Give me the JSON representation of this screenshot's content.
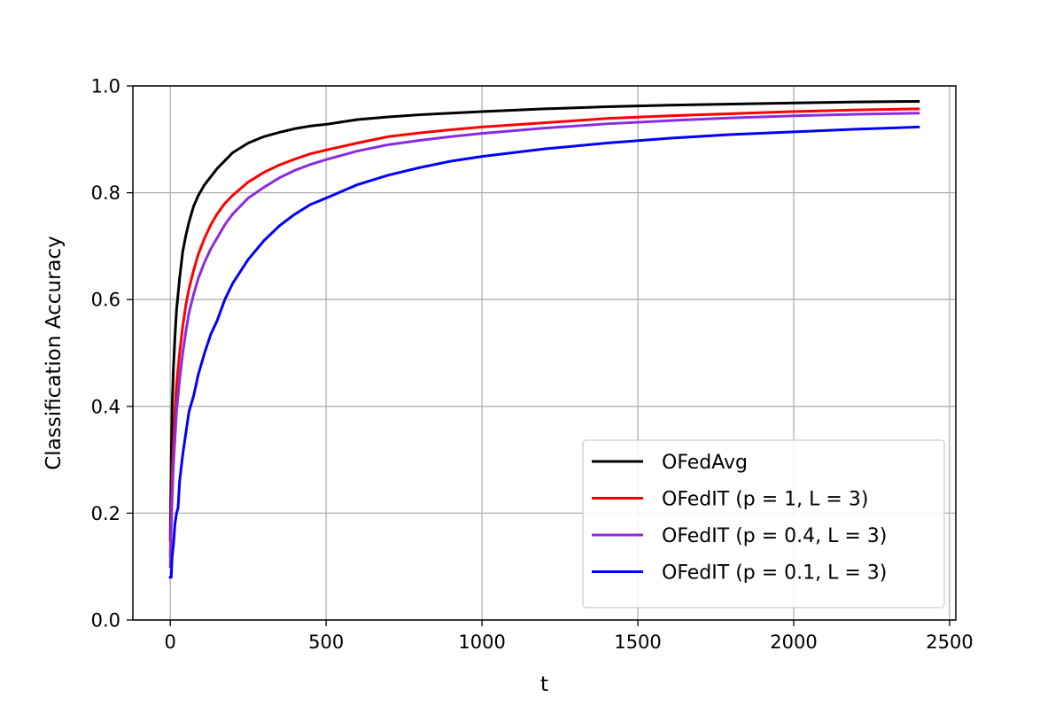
{
  "chart_data": {
    "type": "line",
    "title": "",
    "xlabel": "t",
    "ylabel": "Classification Accuracy",
    "xlim": [
      -120,
      2520
    ],
    "ylim": [
      0.0,
      1.0
    ],
    "xticks": [
      0,
      500,
      1000,
      1500,
      2000,
      2500
    ],
    "yticks": [
      0.0,
      0.2,
      0.4,
      0.6,
      0.8,
      1.0
    ],
    "xtick_labels": [
      "0",
      "500",
      "1000",
      "1500",
      "2000",
      "2500"
    ],
    "ytick_labels": [
      "0.0",
      "0.2",
      "0.4",
      "0.6",
      "0.8",
      "1.0"
    ],
    "grid": true,
    "legend_position": "lower-right",
    "series": [
      {
        "name": "OFedAvg",
        "color": "#000000",
        "x": [
          0,
          3,
          6,
          10,
          15,
          20,
          30,
          40,
          50,
          60,
          75,
          90,
          110,
          130,
          150,
          175,
          200,
          250,
          300,
          350,
          400,
          450,
          500,
          600,
          700,
          800,
          900,
          1000,
          1200,
          1400,
          1600,
          1800,
          2000,
          2200,
          2400
        ],
        "values": [
          0.15,
          0.3,
          0.4,
          0.47,
          0.53,
          0.58,
          0.64,
          0.69,
          0.72,
          0.745,
          0.775,
          0.795,
          0.815,
          0.83,
          0.845,
          0.86,
          0.875,
          0.893,
          0.905,
          0.913,
          0.92,
          0.925,
          0.928,
          0.937,
          0.942,
          0.946,
          0.949,
          0.952,
          0.957,
          0.961,
          0.964,
          0.966,
          0.968,
          0.97,
          0.971
        ]
      },
      {
        "name": "OFedIT (p = 1, L = 3)",
        "color": "#ff0000",
        "x": [
          0,
          3,
          6,
          10,
          15,
          20,
          30,
          40,
          50,
          60,
          75,
          90,
          110,
          130,
          150,
          175,
          200,
          250,
          300,
          350,
          400,
          450,
          500,
          600,
          700,
          800,
          900,
          1000,
          1200,
          1400,
          1600,
          1800,
          2000,
          2200,
          2400
        ],
        "values": [
          0.12,
          0.2,
          0.27,
          0.33,
          0.39,
          0.44,
          0.5,
          0.55,
          0.59,
          0.62,
          0.655,
          0.685,
          0.715,
          0.74,
          0.76,
          0.78,
          0.795,
          0.82,
          0.838,
          0.852,
          0.863,
          0.873,
          0.88,
          0.893,
          0.905,
          0.912,
          0.918,
          0.923,
          0.931,
          0.939,
          0.944,
          0.948,
          0.952,
          0.955,
          0.957
        ]
      },
      {
        "name": "OFedIT (p = 0.4, L = 3)",
        "color": "#8a2be2",
        "x": [
          0,
          3,
          6,
          10,
          15,
          20,
          30,
          40,
          50,
          60,
          75,
          90,
          110,
          130,
          150,
          175,
          200,
          250,
          300,
          350,
          400,
          450,
          500,
          600,
          700,
          800,
          900,
          1000,
          1200,
          1400,
          1600,
          1800,
          2000,
          2200,
          2400
        ],
        "values": [
          0.1,
          0.17,
          0.23,
          0.29,
          0.34,
          0.39,
          0.45,
          0.5,
          0.54,
          0.575,
          0.61,
          0.64,
          0.67,
          0.695,
          0.715,
          0.74,
          0.76,
          0.79,
          0.81,
          0.828,
          0.842,
          0.853,
          0.862,
          0.878,
          0.89,
          0.898,
          0.905,
          0.911,
          0.921,
          0.929,
          0.935,
          0.94,
          0.944,
          0.947,
          0.949
        ]
      },
      {
        "name": "OFedIT (p = 0.1, L = 3)",
        "color": "#0000ff",
        "x": [
          0,
          3,
          6,
          10,
          15,
          20,
          25,
          30,
          40,
          50,
          60,
          75,
          90,
          110,
          130,
          150,
          175,
          200,
          250,
          300,
          350,
          400,
          450,
          500,
          600,
          700,
          800,
          900,
          1000,
          1200,
          1400,
          1600,
          1800,
          2000,
          2200,
          2400
        ],
        "values": [
          0.08,
          0.08,
          0.12,
          0.14,
          0.18,
          0.2,
          0.21,
          0.26,
          0.31,
          0.35,
          0.39,
          0.42,
          0.46,
          0.5,
          0.535,
          0.56,
          0.6,
          0.63,
          0.675,
          0.71,
          0.738,
          0.76,
          0.778,
          0.79,
          0.815,
          0.833,
          0.847,
          0.859,
          0.868,
          0.882,
          0.893,
          0.902,
          0.909,
          0.914,
          0.919,
          0.923
        ]
      }
    ]
  }
}
